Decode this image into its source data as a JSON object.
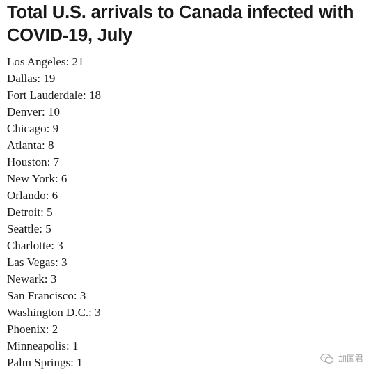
{
  "title": "Total U.S. arrivals to Canada infected with COVID-19, July",
  "cities": [
    {
      "text": "Los Angeles: 21"
    },
    {
      "text": "Dallas: 19"
    },
    {
      "text": "Fort Lauderdale: 18"
    },
    {
      "text": "Denver: 10"
    },
    {
      "text": "Chicago: 9"
    },
    {
      "text": "Atlanta: 8"
    },
    {
      "text": "Houston: 7"
    },
    {
      "text": "New York: 6"
    },
    {
      "text": "Orlando: 6"
    },
    {
      "text": "Detroit: 5"
    },
    {
      "text": "Seattle: 5"
    },
    {
      "text": "Charlotte: 3"
    },
    {
      "text": "Las Vegas: 3"
    },
    {
      "text": "Newark: 3"
    },
    {
      "text": "San Francisco: 3"
    },
    {
      "text": "Washington D.C.: 3"
    },
    {
      "text": "Phoenix: 2"
    },
    {
      "text": "Minneapolis: 1"
    },
    {
      "text": "Palm Springs: 1"
    }
  ],
  "watermark": {
    "icon": "wechat-icon",
    "text": "加国君"
  }
}
